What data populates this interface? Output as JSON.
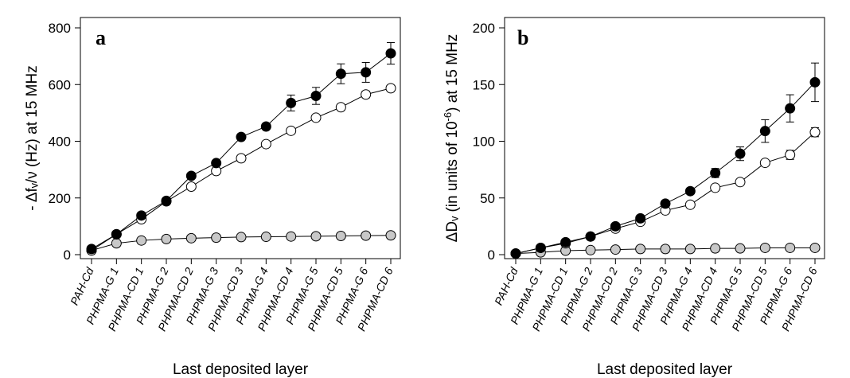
{
  "chart_data": [
    {
      "type": "line",
      "panel_label": "a",
      "ylabel": "- Δfᵥ/ν (Hz) at 15 MHz",
      "xlabel": "Last deposited layer",
      "ylim": [
        0,
        800
      ],
      "yticks": [
        0,
        200,
        400,
        600,
        800
      ],
      "categories": [
        "PAH-Cd",
        "PHPMA-G 1",
        "PHPMA-CD 1",
        "PHPMA-G 2",
        "PHPMA-CD 2",
        "PHPMA-G 3",
        "PHPMA-CD 3",
        "PHPMA-G 4",
        "PHPMA-CD 4",
        "PHPMA-G 5",
        "PHPMA-CD 5",
        "PHPMA-G 6",
        "PHPMA-CD 6"
      ],
      "series": [
        {
          "color": "#000000",
          "marker": "filled-black",
          "values": [
            20,
            72,
            138,
            190,
            278,
            323,
            415,
            452,
            535,
            560,
            638,
            643,
            710
          ],
          "errors": [
            0,
            0,
            0,
            0,
            0,
            0,
            0,
            10,
            28,
            30,
            35,
            35,
            38
          ]
        },
        {
          "color": "#ffffff",
          "marker": "open-white",
          "values": [
            15,
            72,
            125,
            188,
            240,
            295,
            340,
            390,
            437,
            483,
            520,
            565,
            587
          ],
          "errors": [
            0,
            0,
            0,
            0,
            0,
            0,
            0,
            0,
            0,
            0,
            0,
            12,
            0
          ]
        },
        {
          "color": "#c8c8c8",
          "marker": "filled-gray",
          "values": [
            15,
            40,
            50,
            55,
            58,
            60,
            62,
            63,
            64,
            65,
            66,
            67,
            68
          ],
          "errors": [
            0,
            0,
            0,
            0,
            0,
            0,
            0,
            0,
            0,
            0,
            0,
            0,
            0
          ]
        }
      ]
    },
    {
      "type": "line",
      "panel_label": "b",
      "ylabel": "ΔDᵥ (in units of 10",
      "ylabel_sup": "-6",
      "ylabel_tail": ") at 15 MHz",
      "xlabel": "Last deposited layer",
      "ylim": [
        0,
        200
      ],
      "yticks": [
        0,
        50,
        100,
        150,
        200
      ],
      "categories": [
        "PAH-Cd",
        "PHPMA-G 1",
        "PHPMA-CD 1",
        "PHPMA-G 2",
        "PHPMA-CD 2",
        "PHPMA-G 3",
        "PHPMA-CD 3",
        "PHPMA-G 4",
        "PHPMA-CD 4",
        "PHPMA-G 5",
        "PHPMA-CD 5",
        "PHPMA-G 6",
        "PHPMA-CD 6"
      ],
      "series": [
        {
          "color": "#000000",
          "marker": "filled-black",
          "values": [
            1,
            6,
            11,
            16,
            25,
            32,
            45,
            56,
            72,
            89,
            109,
            129,
            152
          ],
          "errors": [
            0,
            0,
            0,
            0,
            0,
            0,
            0,
            0,
            4,
            6,
            10,
            12,
            17
          ]
        },
        {
          "color": "#ffffff",
          "marker": "open-white",
          "values": [
            1,
            6,
            10,
            16,
            23,
            29,
            39,
            44,
            59,
            64,
            81,
            88,
            108
          ],
          "errors": [
            0,
            0,
            0,
            0,
            0,
            0,
            0,
            0,
            0,
            0,
            0,
            4,
            4
          ]
        },
        {
          "color": "#c8c8c8",
          "marker": "filled-gray",
          "values": [
            1,
            2,
            3.5,
            4,
            4.5,
            5,
            5,
            5,
            5.5,
            5.5,
            6,
            6,
            6
          ],
          "errors": [
            0,
            0,
            0,
            0,
            0,
            0,
            0,
            0,
            0,
            0,
            0,
            0,
            0
          ]
        }
      ]
    }
  ]
}
